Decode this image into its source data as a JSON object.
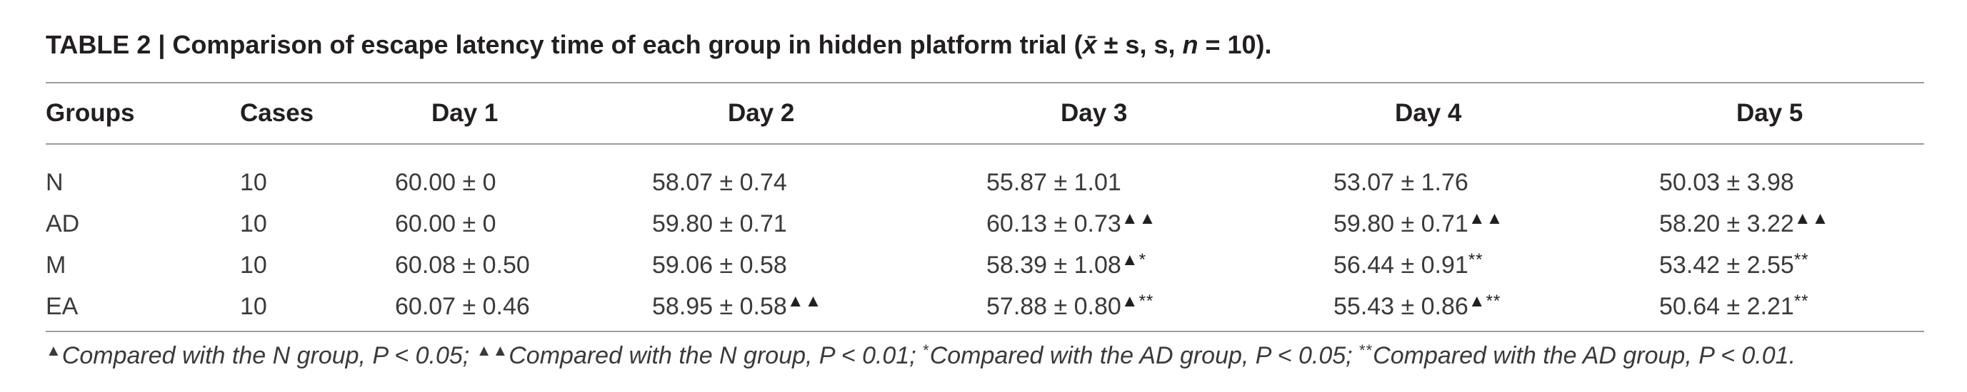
{
  "caption": {
    "label": "TABLE 2",
    "separator": " | ",
    "text_before_stat": "Comparison of escape latency time of each group in hidden platform trial (",
    "stat_symbol": "x̄",
    "text_after_stat": " ± s, s, ",
    "n_symbol": "n",
    "n_value": " = 10)."
  },
  "table": {
    "headers": [
      "Groups",
      "Cases",
      "Day 1",
      "Day 2",
      "Day 3",
      "Day 4",
      "Day 5"
    ],
    "rows": [
      {
        "group": "N",
        "cases": "10",
        "days": [
          {
            "value": "60.00 ± 0",
            "mark": ""
          },
          {
            "value": "58.07 ± 0.74",
            "mark": ""
          },
          {
            "value": "55.87 ± 1.01",
            "mark": ""
          },
          {
            "value": "53.07 ± 1.76",
            "mark": ""
          },
          {
            "value": "50.03 ± 3.98",
            "mark": ""
          }
        ]
      },
      {
        "group": "AD",
        "cases": "10",
        "days": [
          {
            "value": "60.00 ± 0",
            "mark": ""
          },
          {
            "value": "59.80 ± 0.71",
            "mark": ""
          },
          {
            "value": "60.13 ± 0.73",
            "mark": "▲▲"
          },
          {
            "value": "59.80 ± 0.71",
            "mark": "▲▲"
          },
          {
            "value": "58.20 ± 3.22",
            "mark": "▲▲"
          }
        ]
      },
      {
        "group": "M",
        "cases": "10",
        "days": [
          {
            "value": "60.08 ± 0.50",
            "mark": ""
          },
          {
            "value": "59.06 ± 0.58",
            "mark": ""
          },
          {
            "value": "58.39 ± 1.08",
            "mark": "▲*"
          },
          {
            "value": "56.44 ± 0.91",
            "mark": "**"
          },
          {
            "value": "53.42 ± 2.55",
            "mark": "**"
          }
        ]
      },
      {
        "group": "EA",
        "cases": "10",
        "days": [
          {
            "value": "60.07 ± 0.46",
            "mark": ""
          },
          {
            "value": "58.95 ± 0.58",
            "mark": "▲▲"
          },
          {
            "value": "57.88 ± 0.80",
            "mark": "▲**"
          },
          {
            "value": "55.43 ± 0.86",
            "mark": "▲**"
          },
          {
            "value": "50.64 ± 2.21",
            "mark": "**"
          }
        ]
      }
    ]
  },
  "footnote": [
    {
      "mark": "▲",
      "text": "Compared with the N group, P < 0.05; "
    },
    {
      "mark": "▲▲",
      "text": "Compared with the N group, P < 0.01; "
    },
    {
      "mark": "*",
      "text": "Compared with the AD group, P < 0.05; "
    },
    {
      "mark": "**",
      "text": "Compared with the AD group, P < 0.01."
    }
  ]
}
